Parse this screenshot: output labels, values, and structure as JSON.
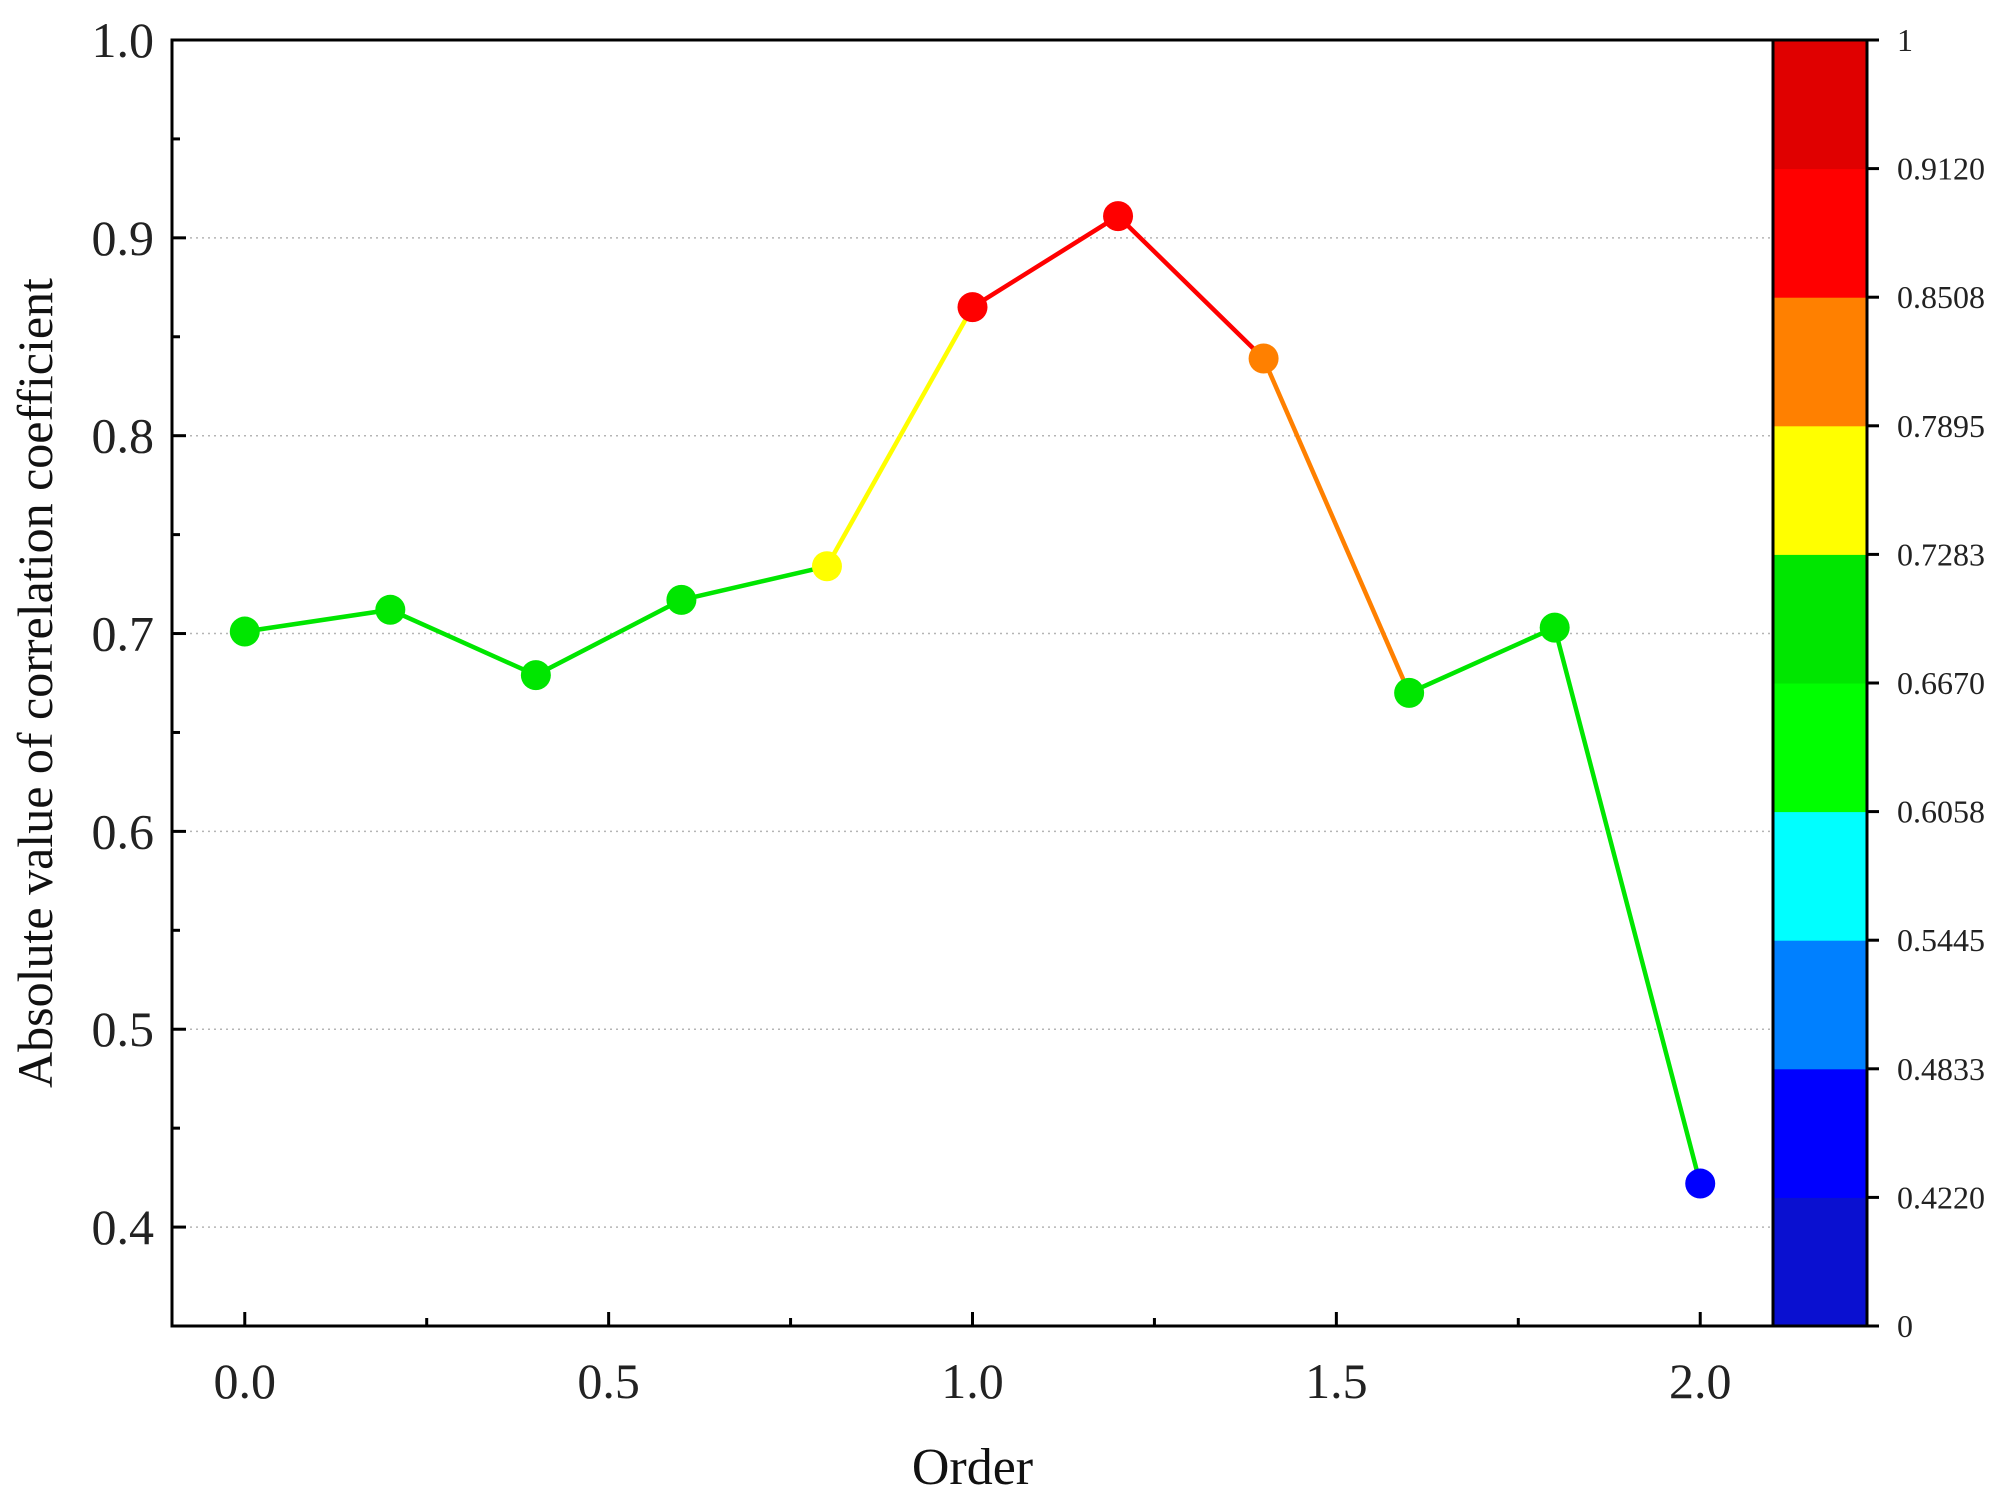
{
  "chart_data": {
    "type": "line",
    "title": "",
    "xlabel": "Order",
    "ylabel": "Absolute value of correlation coefficient",
    "xlim": [
      -0.1,
      2.1
    ],
    "ylim": [
      0.35,
      1.0
    ],
    "x_ticks": [
      "0.0",
      "0.5",
      "1.0",
      "1.5",
      "2.0"
    ],
    "x_tick_values": [
      0,
      0.5,
      1.0,
      1.5,
      2.0
    ],
    "y_ticks": [
      "0.4",
      "0.5",
      "0.6",
      "0.7",
      "0.8",
      "0.9",
      "1.0"
    ],
    "y_tick_values": [
      0.4,
      0.5,
      0.6,
      0.7,
      0.8,
      0.9,
      1.0
    ],
    "grid": "horizontal-dotted",
    "series": [
      {
        "x": [
          0.0,
          0.2,
          0.4,
          0.6,
          0.8,
          1.0,
          1.2,
          1.4,
          1.6,
          1.8,
          2.0
        ],
        "values": [
          0.701,
          0.712,
          0.679,
          0.717,
          0.734,
          0.865,
          0.911,
          0.839,
          0.67,
          0.703,
          0.422
        ]
      }
    ],
    "colorbar": {
      "range": [
        0,
        1
      ],
      "tick_labels": [
        "0",
        "0.4220",
        "0.4833",
        "0.5445",
        "0.6058",
        "0.6670",
        "0.7283",
        "0.7895",
        "0.8508",
        "0.9120",
        "1"
      ],
      "tick_values": [
        0,
        0.422,
        0.4833,
        0.5445,
        0.6058,
        0.667,
        0.7283,
        0.7895,
        0.8508,
        0.912,
        1
      ],
      "bands": [
        {
          "from": 0,
          "to": 0.422,
          "color": "#0a10d0"
        },
        {
          "from": 0.422,
          "to": 0.4833,
          "color": "#0000ff"
        },
        {
          "from": 0.4833,
          "to": 0.5445,
          "color": "#0080ff"
        },
        {
          "from": 0.5445,
          "to": 0.6058,
          "color": "#00ffff"
        },
        {
          "from": 0.6058,
          "to": 0.667,
          "color": "#00ff00"
        },
        {
          "from": 0.667,
          "to": 0.7283,
          "color": "#00e600"
        },
        {
          "from": 0.7283,
          "to": 0.7895,
          "color": "#ffff00"
        },
        {
          "from": 0.7895,
          "to": 0.8508,
          "color": "#ff8000"
        },
        {
          "from": 0.8508,
          "to": 0.912,
          "color": "#ff0000"
        },
        {
          "from": 0.912,
          "to": 1,
          "color": "#e00000"
        }
      ]
    }
  }
}
